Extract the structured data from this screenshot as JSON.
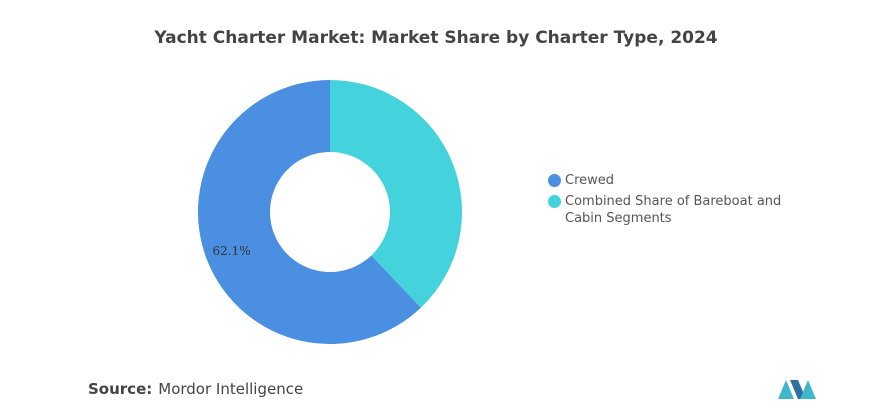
{
  "chart_data": {
    "type": "donut",
    "title": "Yacht Charter Market: Market Share by Charter Type, 2024",
    "categories": [
      "Crewed",
      "Combined Share of Bareboat and Cabin Segments"
    ],
    "values": [
      62.1,
      37.9
    ],
    "value_labels": [
      "62.1%",
      null
    ],
    "colors": [
      "#4a8fe2",
      "#44d2dc"
    ],
    "legend": "right"
  },
  "source": {
    "label": "Source:",
    "text": "Mordor Intelligence"
  }
}
